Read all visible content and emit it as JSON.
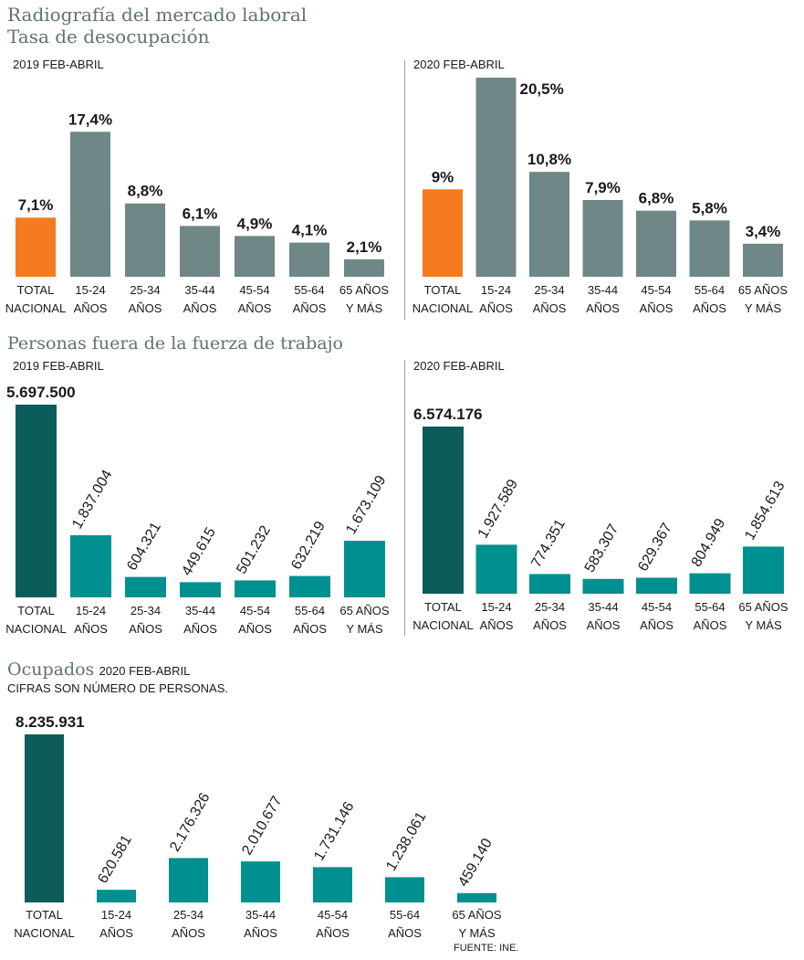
{
  "header": {
    "title": "Radiografía del mercado laboral",
    "subtitle": "Tasa de desocupación"
  },
  "section2": {
    "title": "Personas fuera de la fuerza de trabajo"
  },
  "section3": {
    "title": "Ocupados",
    "period": "2020 FEB-ABRIL",
    "note": "CIFRAS SON NÚMERO DE PERSONAS.",
    "source": "FUENTE: INE."
  },
  "colors": {
    "total_rate": "#f47b20",
    "age_rate": "#708788",
    "total_people": "#0b5c5a",
    "age_people": "#00908f"
  },
  "chart_data": [
    {
      "id": "desocupacion-2019",
      "type": "bar",
      "title": "2019 FEB-ABRIL",
      "categories": [
        [
          "TOTAL",
          "NACIONAL"
        ],
        [
          "15-24",
          "AÑOS"
        ],
        [
          "25-34",
          "AÑOS"
        ],
        [
          "35-44",
          "AÑOS"
        ],
        [
          "45-54",
          "AÑOS"
        ],
        [
          "55-64",
          "AÑOS"
        ],
        [
          "65 AÑOS",
          "Y MÁS"
        ]
      ],
      "values": [
        7.1,
        17.4,
        8.8,
        6.1,
        4.9,
        4.1,
        2.1
      ],
      "labels": [
        "7,1%",
        "17,4%",
        "8,8%",
        "6,1%",
        "4,9%",
        "4,1%",
        "2,1%"
      ],
      "ylim": [
        0,
        20.5
      ]
    },
    {
      "id": "desocupacion-2020",
      "type": "bar",
      "title": "2020 FEB-ABRIL",
      "categories": [
        [
          "TOTAL",
          "NACIONAL"
        ],
        [
          "15-24",
          "AÑOS"
        ],
        [
          "25-34",
          "AÑOS"
        ],
        [
          "35-44",
          "AÑOS"
        ],
        [
          "45-54",
          "AÑOS"
        ],
        [
          "55-64",
          "AÑOS"
        ],
        [
          "65 AÑOS",
          "Y MÁS"
        ]
      ],
      "values": [
        9,
        20.5,
        10.8,
        7.9,
        6.8,
        5.8,
        3.4
      ],
      "labels": [
        "9%",
        "20,5%",
        "10,8%",
        "7,9%",
        "6,8%",
        "5,8%",
        "3,4%"
      ],
      "ylim": [
        0,
        20.5
      ]
    },
    {
      "id": "fuera-2019",
      "type": "bar",
      "title": "2019 FEB-ABRIL",
      "categories": [
        [
          "TOTAL",
          "NACIONAL"
        ],
        [
          "15-24",
          "AÑOS"
        ],
        [
          "25-34",
          "AÑOS"
        ],
        [
          "35-44",
          "AÑOS"
        ],
        [
          "45-54",
          "AÑOS"
        ],
        [
          "55-64",
          "AÑOS"
        ],
        [
          "65 AÑOS",
          "Y MÁS"
        ]
      ],
      "values": [
        5697500,
        1837004,
        604321,
        449615,
        501232,
        632219,
        1673109
      ],
      "labels": [
        "5.697.500",
        "1.837.004",
        "604.321",
        "449.615",
        "501.232",
        "632.219",
        "1.673.109"
      ],
      "ylim": [
        0,
        5697500
      ]
    },
    {
      "id": "fuera-2020",
      "type": "bar",
      "title": "2020 FEB-ABRIL",
      "categories": [
        [
          "TOTAL",
          "NACIONAL"
        ],
        [
          "15-24",
          "AÑOS"
        ],
        [
          "25-34",
          "AÑOS"
        ],
        [
          "35-44",
          "AÑOS"
        ],
        [
          "45-54",
          "AÑOS"
        ],
        [
          "55-64",
          "AÑOS"
        ],
        [
          "65 AÑOS",
          "Y MÁS"
        ]
      ],
      "values": [
        6574176,
        1927589,
        774351,
        583307,
        629367,
        804949,
        1854613
      ],
      "labels": [
        "6.574.176",
        "1.927.589",
        "774.351",
        "583.307",
        "629.367",
        "804.949",
        "1.854.613"
      ],
      "ylim": [
        0,
        6574176
      ]
    },
    {
      "id": "ocupados-2020",
      "type": "bar",
      "title": "Ocupados 2020 FEB-ABRIL",
      "categories": [
        [
          "TOTAL",
          "NACIONAL"
        ],
        [
          "15-24",
          "AÑOS"
        ],
        [
          "25-34",
          "AÑOS"
        ],
        [
          "35-44",
          "AÑOS"
        ],
        [
          "45-54",
          "AÑOS"
        ],
        [
          "55-64",
          "AÑOS"
        ],
        [
          "65 AÑOS",
          "Y MÁS"
        ]
      ],
      "values": [
        8235931,
        620581,
        2176326,
        2010677,
        1731146,
        1238061,
        459140
      ],
      "labels": [
        "8.235.931",
        "620.581",
        "2.176.326",
        "2.010.677",
        "1.731.146",
        "1.238.061",
        "459.140"
      ],
      "ylim": [
        0,
        8235931
      ]
    }
  ]
}
